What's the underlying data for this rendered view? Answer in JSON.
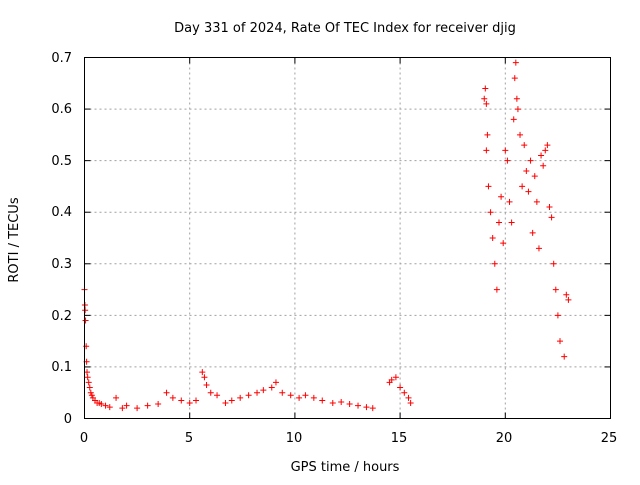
{
  "chart_data": {
    "type": "scatter",
    "title": "Day 331 of 2024, Rate Of TEC Index for receiver djig",
    "xlabel": "GPS time / hours",
    "ylabel": "ROTI / TECUs",
    "xlim": [
      0,
      25
    ],
    "ylim": [
      0,
      0.7
    ],
    "grid": true,
    "marker": "plus",
    "color": "#ff0000",
    "x_ticks": [
      "0",
      "5",
      "10",
      "15",
      "20",
      "25"
    ],
    "x_tick_values": [
      0,
      5,
      10,
      15,
      20,
      25
    ],
    "y_ticks": [
      "0",
      "0.1",
      "0.2",
      "0.3",
      "0.4",
      "0.5",
      "0.6",
      "0.7"
    ],
    "y_tick_values": [
      0,
      0.1,
      0.2,
      0.3,
      0.4,
      0.5,
      0.6,
      0.7
    ],
    "series": [
      {
        "name": "ROTI",
        "points": [
          [
            0.0,
            0.25
          ],
          [
            0.02,
            0.22
          ],
          [
            0.03,
            0.21
          ],
          [
            0.05,
            0.19
          ],
          [
            0.08,
            0.14
          ],
          [
            0.1,
            0.11
          ],
          [
            0.12,
            0.09
          ],
          [
            0.15,
            0.08
          ],
          [
            0.2,
            0.07
          ],
          [
            0.25,
            0.06
          ],
          [
            0.3,
            0.05
          ],
          [
            0.35,
            0.045
          ],
          [
            0.4,
            0.04
          ],
          [
            0.5,
            0.035
          ],
          [
            0.6,
            0.03
          ],
          [
            0.7,
            0.03
          ],
          [
            0.8,
            0.028
          ],
          [
            1.0,
            0.025
          ],
          [
            1.2,
            0.022
          ],
          [
            1.5,
            0.04
          ],
          [
            1.8,
            0.02
          ],
          [
            2.0,
            0.025
          ],
          [
            2.5,
            0.02
          ],
          [
            3.0,
            0.025
          ],
          [
            3.5,
            0.028
          ],
          [
            3.9,
            0.05
          ],
          [
            4.2,
            0.04
          ],
          [
            4.6,
            0.035
          ],
          [
            5.0,
            0.03
          ],
          [
            5.3,
            0.035
          ],
          [
            5.6,
            0.09
          ],
          [
            5.7,
            0.08
          ],
          [
            5.8,
            0.065
          ],
          [
            6.0,
            0.05
          ],
          [
            6.3,
            0.045
          ],
          [
            6.7,
            0.03
          ],
          [
            7.0,
            0.035
          ],
          [
            7.4,
            0.04
          ],
          [
            7.8,
            0.045
          ],
          [
            8.2,
            0.05
          ],
          [
            8.5,
            0.055
          ],
          [
            8.9,
            0.06
          ],
          [
            9.1,
            0.07
          ],
          [
            9.4,
            0.05
          ],
          [
            9.8,
            0.045
          ],
          [
            10.2,
            0.04
          ],
          [
            10.5,
            0.045
          ],
          [
            10.9,
            0.04
          ],
          [
            11.3,
            0.035
          ],
          [
            11.8,
            0.03
          ],
          [
            12.2,
            0.032
          ],
          [
            12.6,
            0.028
          ],
          [
            13.0,
            0.025
          ],
          [
            13.4,
            0.022
          ],
          [
            13.7,
            0.02
          ],
          [
            14.5,
            0.07
          ],
          [
            14.6,
            0.075
          ],
          [
            14.8,
            0.08
          ],
          [
            15.0,
            0.06
          ],
          [
            15.2,
            0.05
          ],
          [
            15.4,
            0.04
          ],
          [
            15.5,
            0.03
          ],
          [
            19.0,
            0.62
          ],
          [
            19.05,
            0.64
          ],
          [
            19.1,
            0.61
          ],
          [
            19.15,
            0.55
          ],
          [
            19.1,
            0.52
          ],
          [
            19.2,
            0.45
          ],
          [
            19.3,
            0.4
          ],
          [
            19.4,
            0.35
          ],
          [
            19.5,
            0.3
          ],
          [
            19.6,
            0.25
          ],
          [
            19.7,
            0.38
          ],
          [
            19.8,
            0.43
          ],
          [
            19.9,
            0.34
          ],
          [
            20.0,
            0.52
          ],
          [
            20.1,
            0.5
          ],
          [
            20.2,
            0.42
          ],
          [
            20.3,
            0.38
          ],
          [
            20.4,
            0.58
          ],
          [
            20.45,
            0.66
          ],
          [
            20.5,
            0.69
          ],
          [
            20.55,
            0.62
          ],
          [
            20.6,
            0.6
          ],
          [
            20.7,
            0.55
          ],
          [
            20.8,
            0.45
          ],
          [
            20.9,
            0.53
          ],
          [
            21.0,
            0.48
          ],
          [
            21.1,
            0.44
          ],
          [
            21.2,
            0.5
          ],
          [
            21.3,
            0.36
          ],
          [
            21.4,
            0.47
          ],
          [
            21.5,
            0.42
          ],
          [
            21.6,
            0.33
          ],
          [
            21.7,
            0.51
          ],
          [
            21.8,
            0.49
          ],
          [
            21.9,
            0.52
          ],
          [
            22.0,
            0.53
          ],
          [
            22.1,
            0.41
          ],
          [
            22.2,
            0.39
          ],
          [
            22.3,
            0.3
          ],
          [
            22.4,
            0.25
          ],
          [
            22.5,
            0.2
          ],
          [
            22.6,
            0.15
          ],
          [
            22.8,
            0.12
          ],
          [
            22.9,
            0.24
          ],
          [
            23.0,
            0.23
          ]
        ]
      }
    ]
  }
}
